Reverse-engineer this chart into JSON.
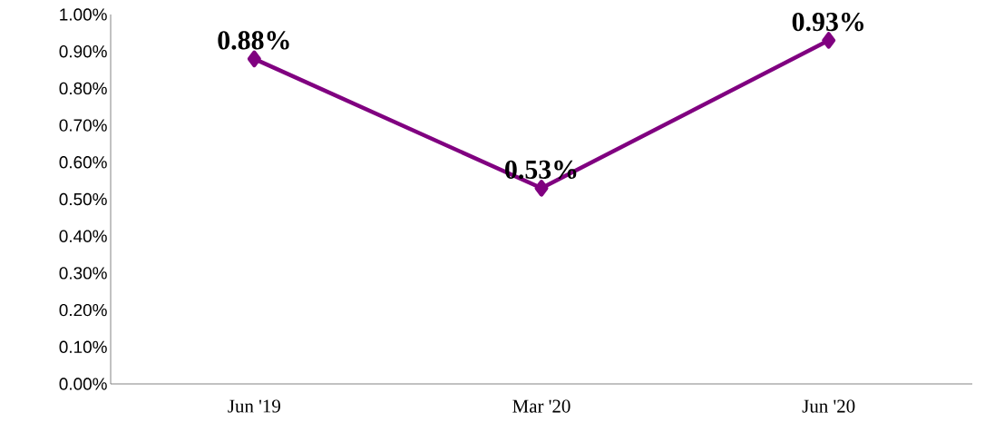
{
  "chart_data": {
    "type": "line",
    "categories": [
      "Jun '19",
      "Mar '20",
      "Jun '20"
    ],
    "values": [
      0.88,
      0.53,
      0.93
    ],
    "value_labels": [
      "0.88%",
      "0.53%",
      "0.93%"
    ],
    "color": "#800080",
    "marker": "diamond",
    "line_style": "solid",
    "ylim": [
      0,
      1
    ],
    "yticks": [
      {
        "value": 0,
        "label": "0.00%"
      },
      {
        "value": 0.1,
        "label": "0.10%"
      },
      {
        "value": 0.2,
        "label": "0.20%"
      },
      {
        "value": 0.3,
        "label": "0.30%"
      },
      {
        "value": 0.4,
        "label": "0.40%"
      },
      {
        "value": 0.5,
        "label": "0.50%"
      },
      {
        "value": 0.6,
        "label": "0.60%"
      },
      {
        "value": 0.7,
        "label": "0.70%"
      },
      {
        "value": 0.8,
        "label": "0.80%"
      },
      {
        "value": 0.9,
        "label": "0.90%"
      },
      {
        "value": 1,
        "label": "1.00%"
      }
    ]
  }
}
